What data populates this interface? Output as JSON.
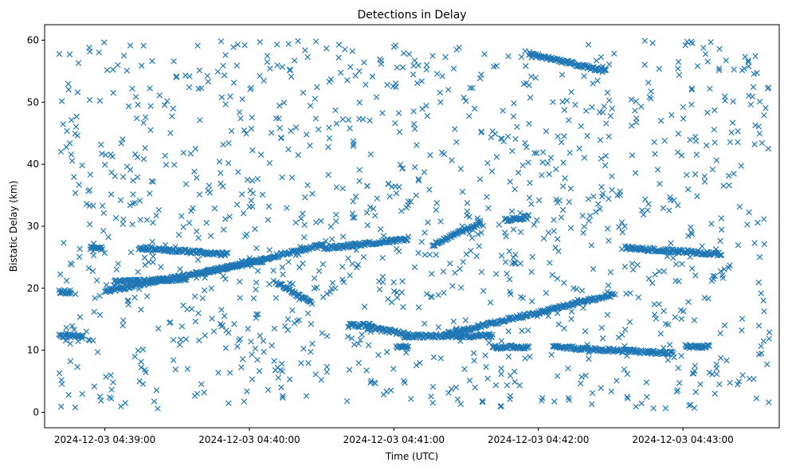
{
  "chart_data": {
    "type": "scatter",
    "title": "Detections in Delay",
    "xlabel": "Time (UTC)",
    "ylabel": "Bistatic Delay (km)",
    "xlim": [
      "2024-12-03 04:38:35",
      "2024-12-03 04:43:40"
    ],
    "ylim": [
      -2.5,
      62.5
    ],
    "xticks": [
      "2024-12-03 04:39:00",
      "2024-12-03 04:40:00",
      "2024-12-03 04:41:00",
      "2024-12-03 04:42:00",
      "2024-12-03 04:43:00"
    ],
    "yticks": [
      0,
      10,
      20,
      30,
      40,
      50,
      60
    ],
    "grid": false,
    "legend": "none",
    "color": "#1f77b4",
    "marker": "x",
    "time_range": [
      "2024-12-03 04:38:41",
      "2024-12-03 04:43:36"
    ],
    "delay_range": [
      0.5,
      60
    ],
    "tracks": [
      {
        "t": [
          "2024-12-03 04:38:41",
          "2024-12-03 04:38:51"
        ],
        "y": [
          12.3,
          12.2
        ]
      },
      {
        "t": [
          "2024-12-03 04:38:41",
          "2024-12-03 04:38:46"
        ],
        "y": [
          19.4,
          19.4
        ]
      },
      {
        "t": [
          "2024-12-03 04:38:54",
          "2024-12-03 04:38:59"
        ],
        "y": [
          26.4,
          26.4
        ]
      },
      {
        "t": [
          "2024-12-03 04:39:00",
          "2024-12-03 04:40:06"
        ],
        "y": [
          19.5,
          24.5
        ]
      },
      {
        "t": [
          "2024-12-03 04:39:04",
          "2024-12-03 04:39:34"
        ],
        "y": [
          21.0,
          21.5
        ]
      },
      {
        "t": [
          "2024-12-03 04:39:14",
          "2024-12-03 04:39:51"
        ],
        "y": [
          26.5,
          25.5
        ]
      },
      {
        "t": [
          "2024-12-03 04:39:41",
          "2024-12-03 04:40:31"
        ],
        "y": [
          22.5,
          27.0
        ]
      },
      {
        "t": [
          "2024-12-03 04:40:31",
          "2024-12-03 04:41:06"
        ],
        "y": [
          26.4,
          28.0
        ]
      },
      {
        "t": [
          "2024-12-03 04:40:11",
          "2024-12-03 04:40:26"
        ],
        "y": [
          21.0,
          17.5
        ]
      },
      {
        "t": [
          "2024-12-03 04:40:41",
          "2024-12-03 04:40:51"
        ],
        "y": [
          14.0,
          14.0
        ]
      },
      {
        "t": [
          "2024-12-03 04:40:49",
          "2024-12-03 04:41:06"
        ],
        "y": [
          13.8,
          12.5
        ]
      },
      {
        "t": [
          "2024-12-03 04:41:01",
          "2024-12-03 04:41:06"
        ],
        "y": [
          10.5,
          10.5
        ]
      },
      {
        "t": [
          "2024-12-03 04:41:04",
          "2024-12-03 04:41:41"
        ],
        "y": [
          12.3,
          12.3
        ]
      },
      {
        "t": [
          "2024-12-03 04:41:21",
          "2024-12-03 04:42:31"
        ],
        "y": [
          12.5,
          19.0
        ]
      },
      {
        "t": [
          "2024-12-03 04:41:41",
          "2024-12-03 04:41:56"
        ],
        "y": [
          10.5,
          10.5
        ]
      },
      {
        "t": [
          "2024-12-03 04:41:16",
          "2024-12-03 04:41:36"
        ],
        "y": [
          27.0,
          30.5
        ]
      },
      {
        "t": [
          "2024-12-03 04:41:46",
          "2024-12-03 04:41:56"
        ],
        "y": [
          31.0,
          31.5
        ]
      },
      {
        "t": [
          "2024-12-03 04:41:56",
          "2024-12-03 04:42:28"
        ],
        "y": [
          57.8,
          55.0
        ]
      },
      {
        "t": [
          "2024-12-03 04:42:06",
          "2024-12-03 04:42:56"
        ],
        "y": [
          10.5,
          9.5
        ]
      },
      {
        "t": [
          "2024-12-03 04:42:36",
          "2024-12-03 04:43:16"
        ],
        "y": [
          26.5,
          25.5
        ]
      },
      {
        "t": [
          "2024-12-03 04:43:01",
          "2024-12-03 04:43:11"
        ],
        "y": [
          10.6,
          10.6
        ]
      }
    ]
  }
}
